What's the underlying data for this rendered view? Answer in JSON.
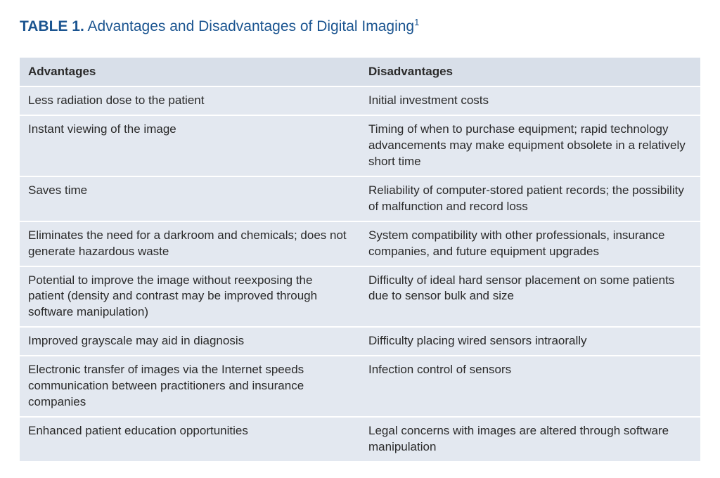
{
  "caption": {
    "label": "TABLE 1.",
    "title": "Advantages and Disadvantages of Digital Imaging",
    "sup": "1"
  },
  "table": {
    "type": "table",
    "background_color": "#e3e8f0",
    "header_background_color": "#d8dfe9",
    "row_border_color": "#ffffff",
    "text_color": "#2a2a2a",
    "caption_color": "#1a5490",
    "font_size_body": 17,
    "font_size_caption": 21,
    "columns": [
      "Advantages",
      "Disadvantages"
    ],
    "column_widths": [
      "50%",
      "50%"
    ],
    "rows": [
      [
        "Less radiation dose to the patient",
        "Initial investment costs"
      ],
      [
        "Instant viewing of the image",
        "Timing of when to purchase equipment; rapid technology advancements may make equipment obsolete in a relatively short time"
      ],
      [
        "Saves time",
        "Reliability of computer-stored patient records; the possibility of malfunction and record loss"
      ],
      [
        "Eliminates the need for a darkroom and chemicals; does not generate hazardous waste",
        "System compatibility with other professionals, insurance companies, and future equipment upgrades"
      ],
      [
        "Potential to improve the image without reexposing the patient (density and contrast may be improved through software manipulation)",
        "Difficulty of ideal hard sensor placement on some patients due to sensor bulk and size"
      ],
      [
        "Improved grayscale may aid in diagnosis",
        "Difficulty placing wired sensors intraorally"
      ],
      [
        "Electronic transfer of images via the Internet speeds communication between practitioners and insurance companies",
        "Infection control of sensors"
      ],
      [
        "Enhanced patient education opportunities",
        "Legal concerns with images are altered through software manipulation"
      ]
    ]
  }
}
